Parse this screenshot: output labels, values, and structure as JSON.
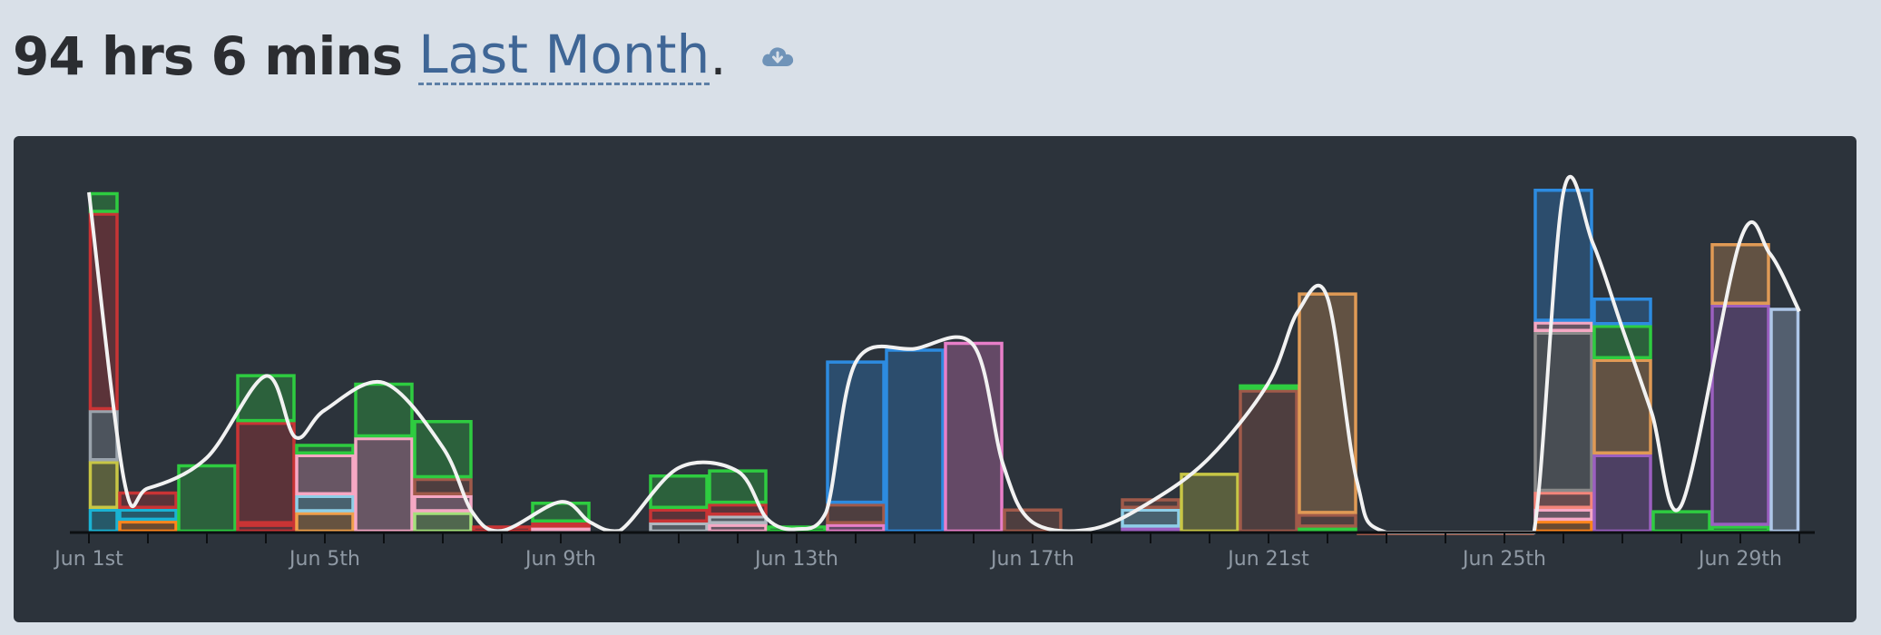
{
  "header": {
    "duration": "94 hrs 6 mins",
    "period": "Last Month",
    "period_suffix": ".",
    "download_icon": "cloud-download-icon"
  },
  "colors": {
    "background": "#d9e0e8",
    "panel": "#2c333b",
    "curve": "#f2f2f2",
    "axis": "#0c0f12"
  },
  "chart_data": {
    "type": "bar",
    "stacked": true,
    "x_unit": "day",
    "x_range": [
      "2019-06-01",
      "2019-06-30"
    ],
    "tick_labels": [
      "Jun 1st",
      "Jun 5th",
      "Jun 9th",
      "Jun 13th",
      "Jun 17th",
      "Jun 21st",
      "Jun 25th",
      "Jun 29th"
    ],
    "tick_days": [
      1,
      5,
      9,
      13,
      17,
      21,
      25,
      29
    ],
    "y_unit": "hours",
    "ylim": [
      0,
      10
    ],
    "grid": false,
    "legend": "none",
    "bars": [
      {
        "start": 1,
        "end": 1.5,
        "segments": [
          {
            "color": "#1ab3d4",
            "value": 0.7
          },
          {
            "color": "#c8c645",
            "value": 1.4
          },
          {
            "color": "#9aa3ac",
            "value": 1.5
          },
          {
            "color": "#c93435",
            "value": 5.8
          },
          {
            "color": "#2ecc40",
            "value": 0.6
          }
        ]
      },
      {
        "start": 1.5,
        "end": 2.5,
        "segments": [
          {
            "color": "#ff851b",
            "value": 0.35
          },
          {
            "color": "#1ab3d4",
            "value": 0.35
          },
          {
            "color": "#c93435",
            "value": 0.5
          }
        ]
      },
      {
        "start": 2.5,
        "end": 3.5,
        "segments": [
          {
            "color": "#2ecc40",
            "value": 2.0
          }
        ]
      },
      {
        "start": 3.5,
        "end": 4.5,
        "segments": [
          {
            "color": "#c93435",
            "value": 0.25
          },
          {
            "color": "#c93435",
            "value": 3.0
          },
          {
            "color": "#2ecc40",
            "value": 1.4
          }
        ]
      },
      {
        "start": 4.5,
        "end": 5.5,
        "segments": [
          {
            "color": "#f0a04b",
            "value": 0.6
          },
          {
            "color": "#8ecfe8",
            "value": 0.5
          },
          {
            "color": "#f6a8c4",
            "value": 1.2
          },
          {
            "color": "#2ecc40",
            "value": 0.3
          }
        ]
      },
      {
        "start": 5.5,
        "end": 6.5,
        "segments": [
          {
            "color": "#f6a8c4",
            "value": 2.8
          },
          {
            "color": "#2ecc40",
            "value": 1.6
          }
        ]
      },
      {
        "start": 6.5,
        "end": 7.5,
        "segments": [
          {
            "color": "#a4e07a",
            "value": 0.6
          },
          {
            "color": "#f6a8c4",
            "value": 0.5
          },
          {
            "color": "#a05a4a",
            "value": 0.5
          },
          {
            "color": "#2ecc40",
            "value": 1.7
          }
        ]
      },
      {
        "start": 7.5,
        "end": 8.5,
        "segments": [
          {
            "color": "#c93435",
            "value": 0.2
          }
        ]
      },
      {
        "start": 8.5,
        "end": 9.5,
        "segments": [
          {
            "color": "#f6a8c4",
            "value": 0.15
          },
          {
            "color": "#c93435",
            "value": 0.15
          },
          {
            "color": "#2ecc40",
            "value": 0.6
          }
        ]
      },
      {
        "start": 10.5,
        "end": 11.5,
        "segments": [
          {
            "color": "#b0b8c0",
            "value": 0.3
          },
          {
            "color": "#c93435",
            "value": 0.4
          },
          {
            "color": "#2ecc40",
            "value": 1.0
          }
        ]
      },
      {
        "start": 11.5,
        "end": 12.5,
        "segments": [
          {
            "color": "#f6a8c4",
            "value": 0.25
          },
          {
            "color": "#b0b8c0",
            "value": 0.25
          },
          {
            "color": "#c93435",
            "value": 0.35
          },
          {
            "color": "#2ecc40",
            "value": 1.0
          }
        ]
      },
      {
        "start": 12.5,
        "end": 13.5,
        "segments": [
          {
            "color": "#2ecc40",
            "value": 0.2
          }
        ]
      },
      {
        "start": 13.5,
        "end": 14.5,
        "segments": [
          {
            "color": "#e87fc9",
            "value": 0.25
          },
          {
            "color": "#a05a4a",
            "value": 0.6
          },
          {
            "color": "#2d8be0",
            "value": 4.2
          }
        ]
      },
      {
        "start": 14.5,
        "end": 15.5,
        "segments": [
          {
            "color": "#2d8be0",
            "value": 5.4
          }
        ]
      },
      {
        "start": 15.5,
        "end": 16.5,
        "segments": [
          {
            "color": "#e87fc9",
            "value": 5.6
          }
        ]
      },
      {
        "start": 16.5,
        "end": 17.5,
        "segments": [
          {
            "color": "#a05a4a",
            "value": 0.7
          }
        ]
      },
      {
        "start": 18.5,
        "end": 19.5,
        "segments": [
          {
            "color": "#9b5fc0",
            "value": 0.15
          },
          {
            "color": "#8ecfe8",
            "value": 0.55
          },
          {
            "color": "#a05a4a",
            "value": 0.3
          }
        ]
      },
      {
        "start": 19.5,
        "end": 20.5,
        "segments": [
          {
            "color": "#c8c645",
            "value": 1.75
          }
        ]
      },
      {
        "start": 20.5,
        "end": 21.5,
        "segments": [
          {
            "color": "#a05a4a",
            "value": 4.2
          },
          {
            "color": "#2ecc40",
            "value": 0.15
          }
        ]
      },
      {
        "start": 21.5,
        "end": 22.5,
        "segments": [
          {
            "color": "#2ecc40",
            "value": 0.15
          },
          {
            "color": "#a05a4a",
            "value": 0.4
          },
          {
            "color": "#e09a55",
            "value": 6.5
          }
        ]
      },
      {
        "start": 22.5,
        "end": 25.5,
        "segments": [
          {
            "color": "#a05a4a",
            "value": 0.02
          }
        ]
      },
      {
        "start": 25.5,
        "end": 26.5,
        "segments": [
          {
            "color": "#ff851b",
            "value": 0.35
          },
          {
            "color": "#f6a8c4",
            "value": 0.35
          },
          {
            "color": "#f4857a",
            "value": 0.5
          },
          {
            "color": "#8a8a8a",
            "value": 4.7
          },
          {
            "color": "#f6a8c4",
            "value": 0.3
          },
          {
            "color": "#2d8be0",
            "value": 3.9
          }
        ]
      },
      {
        "start": 26.5,
        "end": 27.5,
        "segments": [
          {
            "color": "#9b5fc0",
            "value": 2.3
          },
          {
            "color": "#e09a55",
            "value": 2.8
          },
          {
            "color": "#2ecc40",
            "value": 1.0
          },
          {
            "color": "#2d8be0",
            "value": 0.8
          }
        ]
      },
      {
        "start": 27.5,
        "end": 28.5,
        "segments": [
          {
            "color": "#2ecc40",
            "value": 0.65
          }
        ]
      },
      {
        "start": 28.5,
        "end": 29.5,
        "segments": [
          {
            "color": "#2ecc40",
            "value": 0.2
          },
          {
            "color": "#9b5fc0",
            "value": 6.5
          },
          {
            "color": "#e09a55",
            "value": 1.8
          }
        ]
      },
      {
        "start": 29.5,
        "end": 30,
        "segments": [
          {
            "color": "#aec7e8",
            "value": 6.6
          }
        ]
      }
    ],
    "trend": {
      "color": "#f2f2f2",
      "x": [
        1,
        1.6,
        2,
        3,
        4,
        4.5,
        5,
        6,
        7,
        7.5,
        8,
        9,
        9.5,
        10,
        11,
        12,
        12.5,
        13,
        13.5,
        14,
        15,
        16,
        16.5,
        17,
        18,
        19,
        20,
        21,
        21.5,
        22,
        22.5,
        23,
        25,
        25.5,
        26,
        26.5,
        27,
        27.5,
        28,
        29,
        29.5,
        30
      ],
      "y": [
        10,
        1.5,
        1.3,
        2.2,
        4.6,
        2.8,
        3.6,
        4.4,
        2.5,
        0.6,
        0.05,
        0.9,
        0.3,
        0.05,
        1.9,
        1.8,
        0.4,
        0.1,
        0.6,
        5.0,
        5.4,
        5.5,
        2.0,
        0.3,
        0.1,
        0.9,
        2.2,
        4.4,
        6.5,
        6.9,
        1.5,
        0,
        0,
        0,
        10,
        8.5,
        6.0,
        3.5,
        0.8,
        8.6,
        8.2,
        6.5
      ]
    }
  }
}
